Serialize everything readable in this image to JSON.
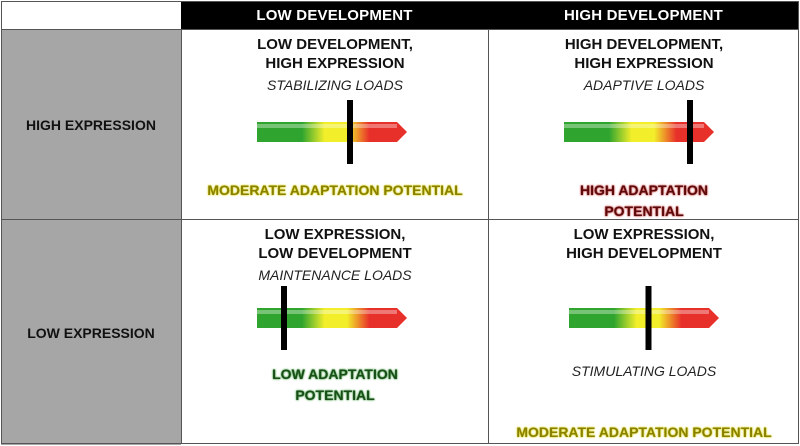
{
  "headers": {
    "corner": "",
    "col_low": "LOW DEVELOPMENT",
    "col_high": "HIGH DEVELOPMENT"
  },
  "rows": {
    "high": "HIGH EXPRESSION",
    "low": "LOW EXPRESSION"
  },
  "cells": {
    "hl": {
      "line1": "LOW DEVELOPMENT,",
      "line2": "HIGH EXPRESSION",
      "load": "STABILIZING LOADS",
      "potential": "MODERATE ADAPTATION POTENTIAL",
      "marker_level": 0.62
    },
    "hh": {
      "line1": "HIGH DEVELOPMENT,",
      "line2": "HIGH EXPRESSION",
      "load": "ADAPTIVE LOADS",
      "potential": "HIGH ADAPTATION POTENTIAL",
      "marker_level": 0.84
    },
    "ll": {
      "line1": "LOW EXPRESSION,",
      "line2": "LOW DEVELOPMENT",
      "load": "MAINTENANCE LOADS",
      "potential": "LOW ADAPTATION POTENTIAL",
      "marker_level": 0.18
    },
    "lh": {
      "line1": "LOW EXPRESSION,",
      "line2": "HIGH DEVELOPMENT",
      "load": "STIMULATING LOADS",
      "potential": "MODERATE ADAPTATION POTENTIAL",
      "marker_level": 0.53
    }
  },
  "colors": {
    "green": "#2fa52f",
    "yellow": "#f2ee2a",
    "red": "#e8302a",
    "marker": "#000000"
  }
}
